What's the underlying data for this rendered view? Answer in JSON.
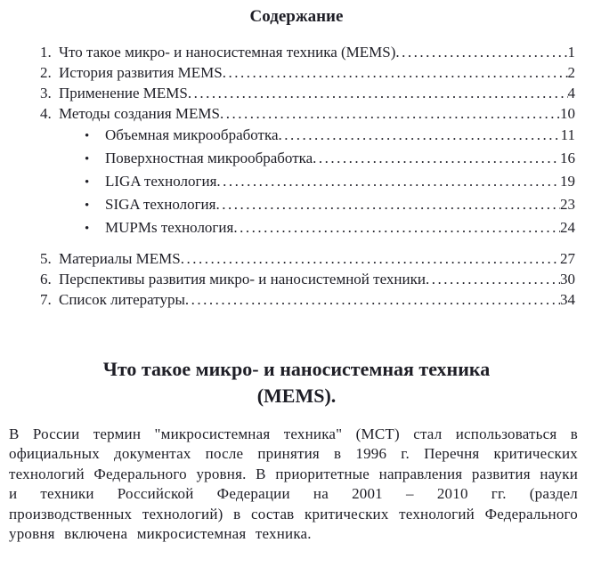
{
  "toc": {
    "title": "Содержание",
    "bullet": "•",
    "items": [
      {
        "num": "1.",
        "label": "Что такое микро- и наносистемная техника (MEMS)",
        "page": "1"
      },
      {
        "num": "2.",
        "label": "История развития MEMS",
        "page": "2"
      },
      {
        "num": "3.",
        "label": "Применение MEMS",
        "page": "4"
      },
      {
        "num": "4.",
        "label": "Методы создания MEMS",
        "page": "10"
      },
      {
        "num": "5.",
        "label": "Материалы MEMS",
        "page": "27"
      },
      {
        "num": "6.",
        "label": "Перспективы развития микро- и наносистемной техники",
        "page": "30"
      },
      {
        "num": "7.",
        "label": "Список литературы",
        "page": "34"
      }
    ],
    "sub": [
      {
        "label": "Объемная микрообработка",
        "page": "11"
      },
      {
        "label": "Поверхностная микрообработка",
        "page": "16"
      },
      {
        "label": "LIGA технология",
        "page": "19"
      },
      {
        "label": "SIGA технология",
        "page": "23"
      },
      {
        "label": "MUPMs технология",
        "page": "24"
      }
    ]
  },
  "section": {
    "heading_line1": "Что такое микро- и наносистемная техника",
    "heading_line2": "(MEMS).",
    "paragraph": "В России термин \"микросистемная техника\" (МСТ) стал использоваться в официальных документах после принятия в 1996 г. Перечня критических технологий Федерального уровня. В приоритетные направления развития науки и техники Российской Федерации на 2001 – 2010 гг. (раздел производственных технологий) в состав критических технологий Федерального уровня включена микросистемная техника."
  }
}
